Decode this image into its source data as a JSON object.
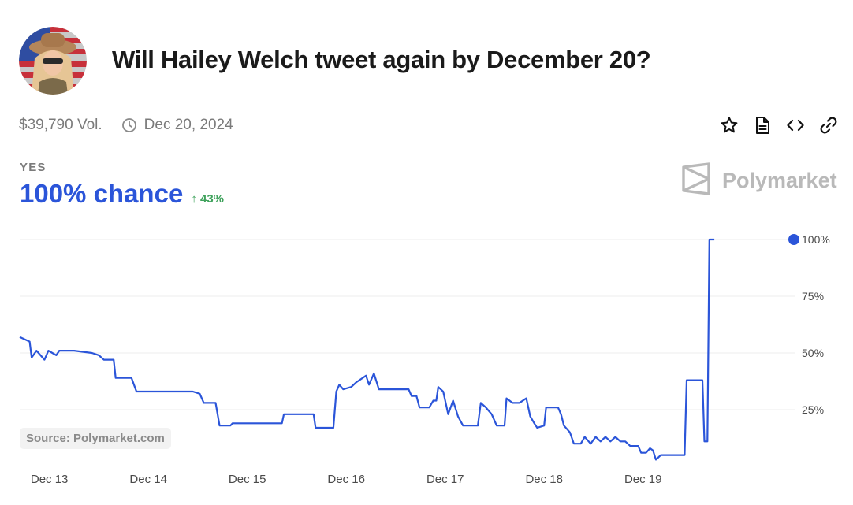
{
  "market": {
    "title": "Will Hailey Welch tweet again by December 20?",
    "volume": "$39,790 Vol.",
    "end_date": "Dec 20, 2024",
    "outcome_label": "YES",
    "chance": "100% chance",
    "change": "43%",
    "change_arrow": "↑",
    "brand": "Polymarket",
    "source": "Source: Polymarket.com"
  },
  "icons": {
    "avatar": "profile-avatar",
    "clock": "clock-icon",
    "star": "star-icon",
    "document": "document-icon",
    "embed": "code-embed-icon",
    "link": "link-icon",
    "brand": "polymarket-logo-icon"
  },
  "colors": {
    "accent": "#2b55d9",
    "positive": "#3fa25c",
    "muted": "#7b7b7b",
    "grid": "#ececec"
  },
  "chart_data": {
    "type": "line",
    "title": "",
    "xlabel": "",
    "ylabel": "",
    "x_tick_labels": [
      "Dec 13",
      "Dec 14",
      "Dec 15",
      "Dec 16",
      "Dec 17",
      "Dec 18",
      "Dec 19"
    ],
    "y_tick_labels": [
      "100%",
      "75%",
      "50%",
      "25%"
    ],
    "y_ticks": [
      100,
      75,
      50,
      25
    ],
    "ylim": [
      0,
      100
    ],
    "xlim": [
      12.7,
      20.5
    ],
    "grid": "horizontal",
    "end_marker": true,
    "series": [
      {
        "name": "",
        "color": "#2b55d9",
        "points": [
          [
            12.7,
            57
          ],
          [
            12.8,
            55
          ],
          [
            12.82,
            48
          ],
          [
            12.87,
            51
          ],
          [
            12.91,
            49
          ],
          [
            12.95,
            47
          ],
          [
            12.99,
            51
          ],
          [
            13.03,
            50
          ],
          [
            13.07,
            49
          ],
          [
            13.1,
            51
          ],
          [
            13.25,
            51
          ],
          [
            13.43,
            50
          ],
          [
            13.5,
            49
          ],
          [
            13.55,
            47
          ],
          [
            13.65,
            47
          ],
          [
            13.67,
            39
          ],
          [
            13.83,
            39
          ],
          [
            13.88,
            33
          ],
          [
            14.25,
            33
          ],
          [
            14.45,
            33
          ],
          [
            14.52,
            32
          ],
          [
            14.56,
            28
          ],
          [
            14.68,
            28
          ],
          [
            14.72,
            18
          ],
          [
            14.83,
            18
          ],
          [
            14.85,
            19
          ],
          [
            15.35,
            19
          ],
          [
            15.37,
            23
          ],
          [
            15.67,
            23
          ],
          [
            15.69,
            17
          ],
          [
            15.85,
            17
          ],
          [
            15.87,
            17
          ],
          [
            15.9,
            33
          ],
          [
            15.93,
            36
          ],
          [
            15.97,
            34
          ],
          [
            16.05,
            35
          ],
          [
            16.1,
            37
          ],
          [
            16.2,
            40
          ],
          [
            16.23,
            36
          ],
          [
            16.28,
            41
          ],
          [
            16.33,
            34
          ],
          [
            16.5,
            34
          ],
          [
            16.63,
            34
          ],
          [
            16.66,
            31
          ],
          [
            16.71,
            31
          ],
          [
            16.74,
            26
          ],
          [
            16.84,
            26
          ],
          [
            16.88,
            29
          ],
          [
            16.91,
            29
          ],
          [
            16.93,
            35
          ],
          [
            16.98,
            33
          ],
          [
            17.03,
            23
          ],
          [
            17.08,
            29
          ],
          [
            17.13,
            22
          ],
          [
            17.18,
            18
          ],
          [
            17.33,
            18
          ],
          [
            17.36,
            28
          ],
          [
            17.41,
            26
          ],
          [
            17.47,
            23
          ],
          [
            17.52,
            18
          ],
          [
            17.6,
            18
          ],
          [
            17.62,
            30
          ],
          [
            17.68,
            28
          ],
          [
            17.75,
            28
          ],
          [
            17.82,
            30
          ],
          [
            17.86,
            22
          ],
          [
            17.9,
            19
          ],
          [
            17.93,
            17
          ],
          [
            18.0,
            18
          ],
          [
            18.02,
            26
          ],
          [
            18.14,
            26
          ],
          [
            18.17,
            23
          ],
          [
            18.2,
            18
          ],
          [
            18.26,
            15
          ],
          [
            18.3,
            10
          ],
          [
            18.37,
            10
          ],
          [
            18.41,
            13
          ],
          [
            18.47,
            10
          ],
          [
            18.52,
            13
          ],
          [
            18.57,
            11
          ],
          [
            18.62,
            13
          ],
          [
            18.67,
            11
          ],
          [
            18.72,
            13
          ],
          [
            18.77,
            11
          ],
          [
            18.82,
            11
          ],
          [
            18.87,
            9
          ],
          [
            18.95,
            9
          ],
          [
            18.98,
            6
          ],
          [
            19.03,
            6
          ],
          [
            19.07,
            8
          ],
          [
            19.1,
            7
          ],
          [
            19.13,
            3
          ],
          [
            19.18,
            5
          ],
          [
            19.42,
            5
          ],
          [
            19.44,
            38
          ],
          [
            19.6,
            38
          ],
          [
            19.62,
            11
          ],
          [
            19.65,
            11
          ],
          [
            19.67,
            100
          ],
          [
            19.72,
            100
          ]
        ]
      }
    ]
  }
}
